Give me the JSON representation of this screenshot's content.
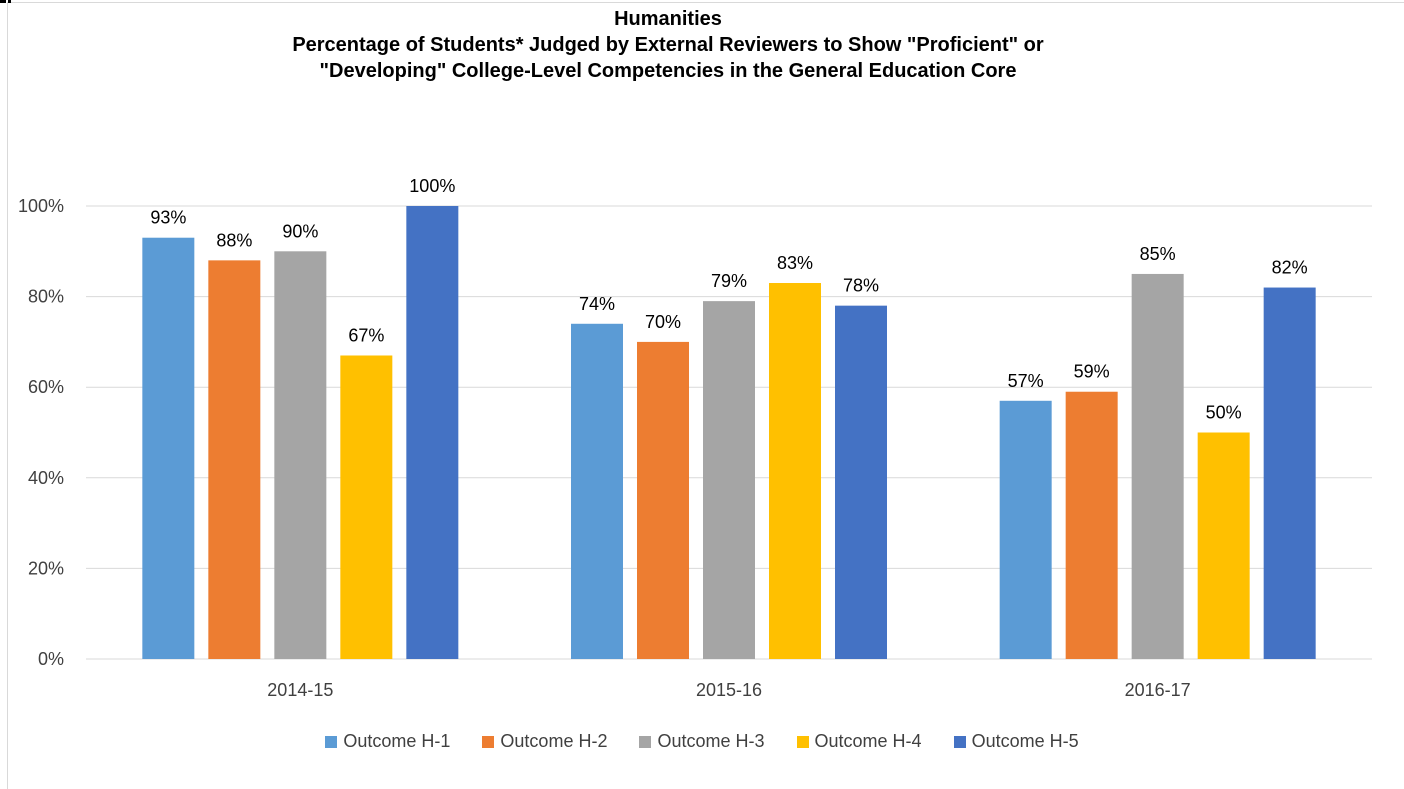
{
  "chart_data": {
    "type": "bar",
    "title": "Humanities",
    "subtitle_lines": [
      "Percentage of Students* Judged by External Reviewers to Show \"Proficient\" or",
      "\"Developing\" College-Level Competencies in the General Education Core"
    ],
    "categories": [
      "2014-15",
      "2015-16",
      "2016-17"
    ],
    "series": [
      {
        "name": "Outcome H-1",
        "color": "#5b9bd5",
        "values": [
          93,
          74,
          57
        ]
      },
      {
        "name": "Outcome H-2",
        "color": "#ed7d31",
        "values": [
          88,
          70,
          59
        ]
      },
      {
        "name": "Outcome H-3",
        "color": "#a5a5a5",
        "values": [
          90,
          79,
          85
        ]
      },
      {
        "name": "Outcome H-4",
        "color": "#ffc000",
        "values": [
          67,
          83,
          50
        ]
      },
      {
        "name": "Outcome H-5",
        "color": "#4472c4",
        "values": [
          100,
          78,
          82
        ]
      }
    ],
    "ylim": [
      0,
      100
    ],
    "yticks": [
      0,
      20,
      40,
      60,
      80,
      100
    ],
    "ytick_labels": [
      "0%",
      "20%",
      "40%",
      "60%",
      "80%",
      "100%"
    ],
    "data_labels": [
      [
        "93%",
        "74%",
        "57%"
      ],
      [
        "88%",
        "70%",
        "59%"
      ],
      [
        "90%",
        "79%",
        "85%"
      ],
      [
        "67%",
        "83%",
        "50%"
      ],
      [
        "100%",
        "78%",
        "82%"
      ]
    ],
    "grid": true,
    "legend_position": "bottom"
  }
}
